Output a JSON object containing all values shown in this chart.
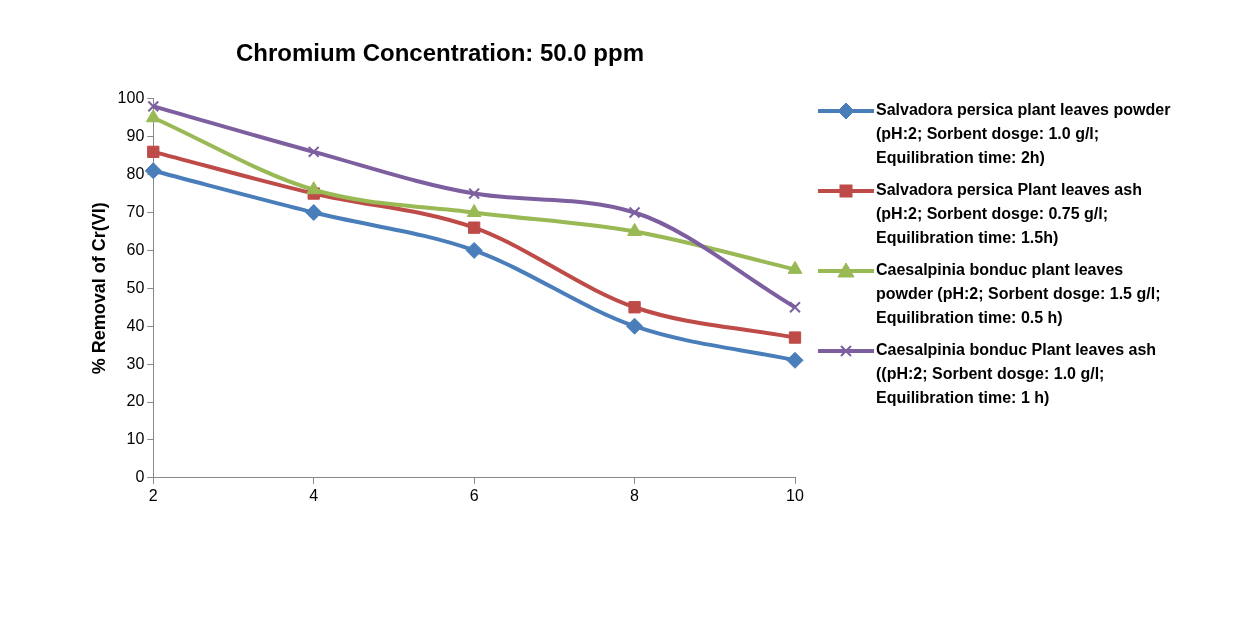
{
  "chart_data": {
    "type": "line",
    "title": "Chromium Concentration: 50.0 ppm",
    "ylabel": "% Removal of Cr(VI)",
    "x": [
      2,
      4,
      6,
      8,
      10
    ],
    "xlim": [
      2,
      10
    ],
    "xticks": [
      2,
      4,
      6,
      8,
      10
    ],
    "ylim": [
      0,
      100
    ],
    "yticks": [
      0,
      10,
      20,
      30,
      40,
      50,
      60,
      70,
      80,
      90,
      100
    ],
    "grid": false,
    "legend": "right",
    "series": [
      {
        "name": "Salvadora persica plant leaves powder (pH:2; Sorbent dosge: 1.0 g/l; Equilibration time: 2h)",
        "color": "#4a7ebb",
        "marker": "diamond",
        "values": [
          81,
          70,
          60,
          40,
          31
        ]
      },
      {
        "name": "Salvadora persica Plant  leaves ash (pH:2; Sorbent dosge: 0.75 g/l; Equilibration time: 1.5h)",
        "color": "#be4b48",
        "marker": "square",
        "values": [
          86,
          75,
          66,
          45,
          37
        ]
      },
      {
        "name": "Caesalpinia bonduc plant leaves powder (pH:2; Sorbent dosge: 1.5 g/l; Equilibration time: 0.5 h)",
        "color": "#98b954",
        "marker": "triangle",
        "values": [
          95,
          76,
          70,
          65,
          55
        ]
      },
      {
        "name": "Caesalpinia bonduc Plant  leaves ash ((pH:2; Sorbent dosge: 1.0 g/l; Equilibration time: 1 h)",
        "color": "#7d5fa0",
        "marker": "cross",
        "values": [
          98,
          86,
          75,
          70,
          45
        ]
      }
    ]
  }
}
